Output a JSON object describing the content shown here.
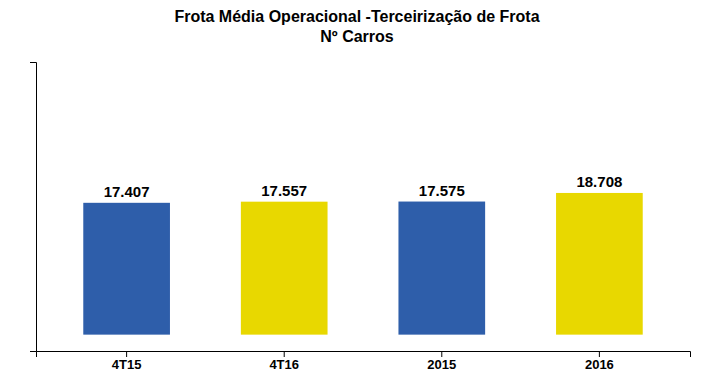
{
  "chart_data": {
    "type": "bar",
    "title": "Frota Média Operacional -Terceirização de Frota",
    "subtitle": "Nº Carros",
    "categories": [
      "4T15",
      "4T16",
      "2015",
      "2016"
    ],
    "values": [
      17407,
      17557,
      17575,
      18708
    ],
    "value_labels": [
      "17.407",
      "17.557",
      "17.575",
      "18.708"
    ],
    "colors": [
      "#2E5EAA",
      "#E8D800",
      "#2E5EAA",
      "#E8D800"
    ],
    "ylim": [
      -2160,
      36000
    ],
    "yticks": [],
    "grid": false,
    "data_labels": true,
    "tick_labels": "x"
  }
}
